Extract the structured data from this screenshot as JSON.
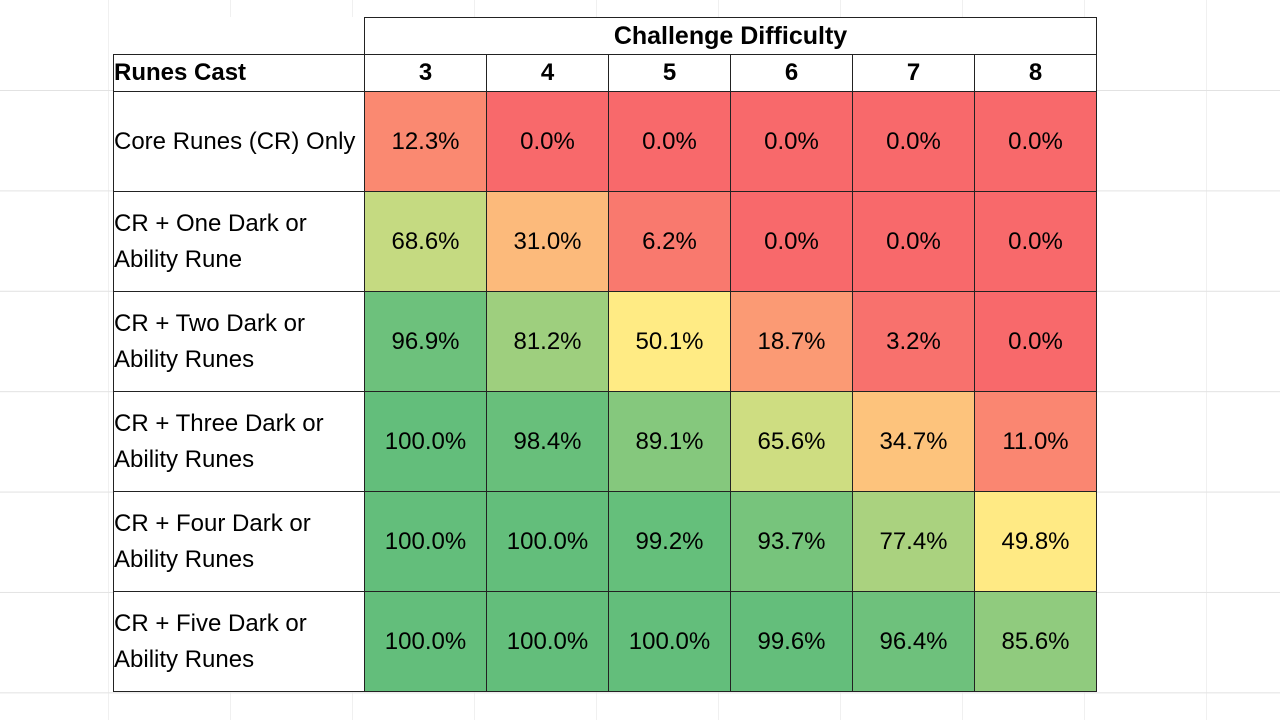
{
  "chart_data": {
    "type": "heatmap",
    "title": "Challenge Difficulty",
    "row_header": "Runes Cast",
    "x": [
      "3",
      "4",
      "5",
      "6",
      "7",
      "8"
    ],
    "y": [
      "Core Runes (CR) Only",
      "CR + One Dark or Ability Rune",
      "CR + Two Dark or Ability Runes",
      "CR + Three Dark or Ability Runes",
      "CR + Four Dark or Ability Runes",
      "CR + Five Dark or Ability Runes"
    ],
    "values": [
      [
        12.3,
        0.0,
        0.0,
        0.0,
        0.0,
        0.0
      ],
      [
        68.6,
        31.0,
        6.2,
        0.0,
        0.0,
        0.0
      ],
      [
        96.9,
        81.2,
        50.1,
        18.7,
        3.2,
        0.0
      ],
      [
        100.0,
        98.4,
        89.1,
        65.6,
        34.7,
        11.0
      ],
      [
        100.0,
        100.0,
        99.2,
        93.7,
        77.4,
        49.8
      ],
      [
        100.0,
        100.0,
        100.0,
        99.6,
        96.4,
        85.6
      ]
    ],
    "value_format": "%",
    "color_scale": {
      "low": "#f8696b",
      "mid": "#ffeb84",
      "high": "#63be7b"
    }
  }
}
